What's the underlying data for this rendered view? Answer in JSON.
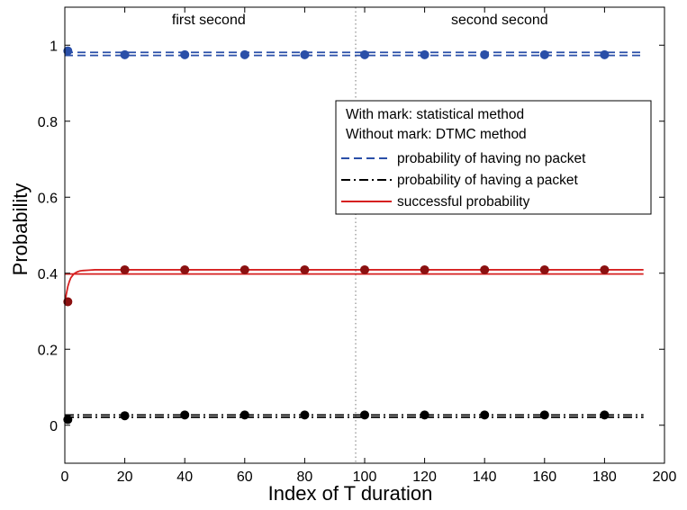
{
  "chart_data": {
    "type": "line",
    "xlabel": "Index of T duration",
    "ylabel": "Probability",
    "xlim": [
      0,
      200
    ],
    "ylim": [
      -0.1,
      1.1
    ],
    "xticks": [
      0,
      20,
      40,
      60,
      80,
      100,
      120,
      140,
      160,
      180,
      200
    ],
    "yticks": [
      0,
      0.2,
      0.4,
      0.6,
      0.8,
      1
    ],
    "ytick_labels": [
      "0",
      "0.2",
      "0.4",
      "0.6",
      "0.8",
      "1"
    ],
    "grid": false,
    "divider_x": 97,
    "annotations": [
      {
        "text": "first second",
        "x": 48,
        "y": 1.055
      },
      {
        "text": "second second",
        "x": 145,
        "y": 1.055
      }
    ],
    "legend": {
      "placement": "top-right",
      "header": [
        "With mark: statistical method",
        "Without mark: DTMC method"
      ],
      "entries": [
        {
          "label": "probability of having no packet",
          "color": "#2a4fa8",
          "style": "dashed"
        },
        {
          "label": "probability of having a packet",
          "color": "#000000",
          "style": "dashdot"
        },
        {
          "label": "successful probability",
          "color": "#d62020",
          "style": "solid"
        }
      ]
    },
    "series": [
      {
        "key": "no_packet",
        "color": "#2a4fa8",
        "style": "dashed",
        "lines": [
          {
            "x": [
              0,
              193
            ],
            "y": [
              0.981,
              0.981
            ]
          },
          {
            "x": [
              0,
              193
            ],
            "y": [
              0.973,
              0.973
            ]
          }
        ]
      },
      {
        "key": "packet",
        "color": "#000000",
        "style": "dashdot",
        "lines": [
          {
            "x": [
              0,
              193
            ],
            "y": [
              0.027,
              0.027
            ]
          },
          {
            "x": [
              0,
              193
            ],
            "y": [
              0.021,
              0.021
            ]
          }
        ]
      },
      {
        "key": "success",
        "color": "#d62020",
        "style": "solid",
        "lines": [
          {
            "x": [
              0,
              0.5,
              1,
              1.5,
              2,
              3,
              4,
              5,
              6,
              8,
              10,
              193
            ],
            "y": [
              0.32,
              0.345,
              0.365,
              0.378,
              0.388,
              0.398,
              0.403,
              0.406,
              0.407,
              0.408,
              0.409,
              0.409
            ]
          },
          {
            "x": [
              0,
              193
            ],
            "y": [
              0.398,
              0.398
            ]
          }
        ]
      }
    ],
    "markers": [
      {
        "key": "no_packet",
        "color": "#2a4fa8",
        "x": [
          1,
          20,
          40,
          60,
          80,
          100,
          120,
          140,
          160,
          180
        ],
        "y": [
          0.985,
          0.975,
          0.975,
          0.975,
          0.975,
          0.975,
          0.975,
          0.975,
          0.975,
          0.975
        ]
      },
      {
        "key": "success",
        "color": "#8b1010",
        "x": [
          1,
          20,
          40,
          60,
          80,
          100,
          120,
          140,
          160,
          180
        ],
        "y": [
          0.325,
          0.409,
          0.409,
          0.409,
          0.409,
          0.409,
          0.409,
          0.409,
          0.409,
          0.409
        ]
      },
      {
        "key": "packet",
        "color": "#000000",
        "x": [
          1,
          20,
          40,
          60,
          80,
          100,
          120,
          140,
          160,
          180
        ],
        "y": [
          0.015,
          0.025,
          0.027,
          0.027,
          0.027,
          0.027,
          0.027,
          0.027,
          0.027,
          0.027
        ]
      }
    ]
  }
}
